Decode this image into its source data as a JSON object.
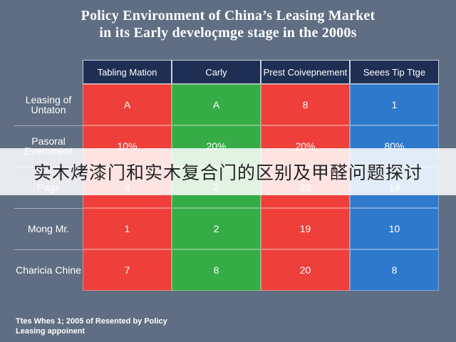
{
  "chart_data": {
    "type": "table",
    "title": "Policy Environment of China’s Leasing Market",
    "subtitle": "in its Early develoçmge stage in the 2000s",
    "columns": [
      "Tabling Mation",
      "Carly",
      "Prest Coivepnement",
      "Seees Tip Ttge"
    ],
    "rows": [
      {
        "label": "Leasing of Untaton",
        "values": [
          "A",
          "A",
          "8",
          "1"
        ]
      },
      {
        "label": "Pasoral Evernment",
        "values": [
          "10%",
          "20%",
          "20%",
          "80%"
        ]
      },
      {
        "label": "Pags",
        "values": [
          "4",
          "2",
          "22",
          "19"
        ]
      },
      {
        "label": "Mong Mr.",
        "values": [
          "1",
          "2",
          "19",
          "10"
        ]
      },
      {
        "label": "Charicia Chine",
        "values": [
          "7",
          "8",
          "20",
          "8"
        ]
      }
    ],
    "column_colors": [
      "#ee3f3a",
      "#35ac45",
      "#ee3f3a",
      "#2f79cc"
    ],
    "header_color": "#1f2f54"
  },
  "footnote": [
    "Ttes Whes 1; 2005 of Resented by Policy",
    "Leasing appoinent"
  ],
  "overlay_caption": "实木烤漆门和实木复合门的区别及甲醛问题探讨"
}
